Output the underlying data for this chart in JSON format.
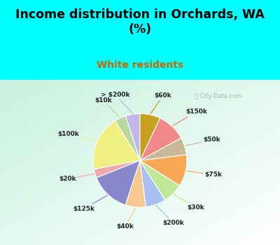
{
  "title": "Income distribution in Orchards, WA\n(%)",
  "subtitle": "White residents",
  "bg_cyan": "#00FFFF",
  "labels": [
    "> $200k",
    "$10k",
    "$100k",
    "$20k",
    "$125k",
    "$40k",
    "$200k",
    "$30k",
    "$75k",
    "$50k",
    "$150k",
    "$60k"
  ],
  "values": [
    5,
    4,
    19,
    3,
    14,
    7,
    7,
    7,
    11,
    6,
    10,
    7
  ],
  "colors": [
    "#c0b8e8",
    "#b8d8a0",
    "#f0f080",
    "#f0a8b0",
    "#8888cc",
    "#f8c890",
    "#a8c0f0",
    "#c0e898",
    "#f8a855",
    "#c8b898",
    "#f08888",
    "#c8a020"
  ],
  "startangle": 90,
  "watermark": "City-Data.com"
}
